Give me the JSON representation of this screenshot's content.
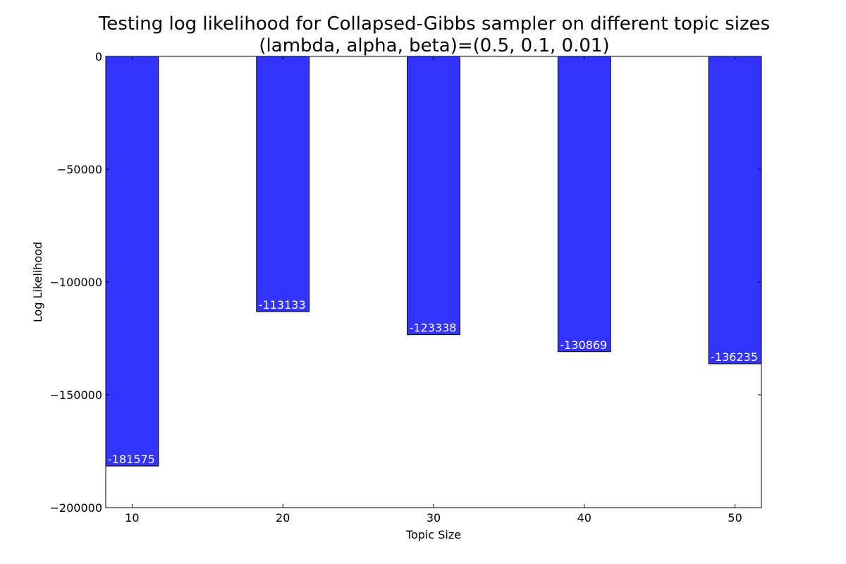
{
  "chart_data": {
    "type": "bar",
    "title": "Testing log likelihood for Collapsed-Gibbs sampler on different topic sizes",
    "subtitle": "(lambda, alpha, beta)=(0.5, 0.1, 0.01)",
    "xlabel": "Topic Size",
    "ylabel": "Log Likelihood",
    "categories": [
      "10",
      "20",
      "30",
      "40",
      "50"
    ],
    "x": [
      10,
      20,
      30,
      40,
      50
    ],
    "values": [
      -181575,
      -113133,
      -123338,
      -130869,
      -136235
    ],
    "data_labels": [
      "-181575",
      "-113133",
      "-123338",
      "-130869",
      "-136235"
    ],
    "xlim": [
      8.25,
      51.75
    ],
    "ylim": [
      -200000,
      0
    ],
    "bar_width": 3.5,
    "yticks": [
      0,
      -50000,
      -100000,
      -150000,
      -200000
    ],
    "ytick_labels": [
      "0",
      "−50000",
      "−100000",
      "−150000",
      "−200000"
    ],
    "xticks": [
      10,
      20,
      30,
      40,
      50
    ],
    "xtick_labels": [
      "10",
      "20",
      "30",
      "40",
      "50"
    ],
    "grid": false,
    "colors": {
      "bar": "#3333ff",
      "bar_edge": "#000000",
      "label": "#ffffff"
    }
  }
}
